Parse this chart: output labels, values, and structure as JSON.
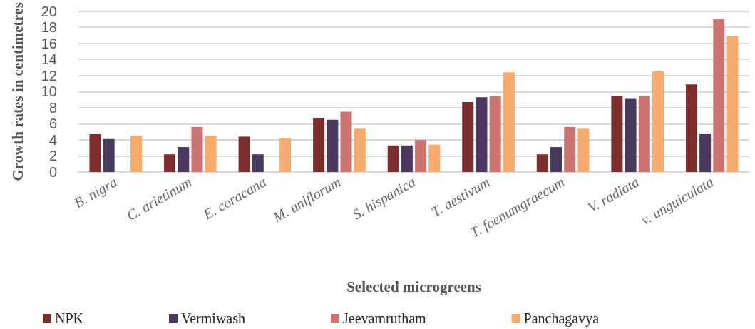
{
  "chart_data": {
    "type": "bar",
    "xlabel": "Selected microgreens",
    "ylabel": "Growth rates in centimetres",
    "categories": [
      "B. nigra",
      "C. arietinum",
      "E. coracana",
      "M. uniflorum",
      "S. hispanica",
      "T. aestivum",
      "T. foenumgraecum",
      "V. radiata",
      "v. unguiculata"
    ],
    "series": [
      {
        "name": "NPK",
        "color": "#7b2c2c",
        "values": [
          4.7,
          2.2,
          4.4,
          6.7,
          3.3,
          8.7,
          2.2,
          9.5,
          10.9
        ]
      },
      {
        "name": "Vermiwash",
        "color": "#4b385e",
        "values": [
          4.1,
          3.1,
          2.2,
          6.5,
          3.3,
          9.3,
          3.1,
          9.1,
          4.7
        ]
      },
      {
        "name": "Jeevamrutham",
        "color": "#cc7470",
        "values": [
          null,
          5.6,
          null,
          7.5,
          4.0,
          9.4,
          5.6,
          9.4,
          19.0
        ]
      },
      {
        "name": "Panchagavya",
        "color": "#f7ab6c",
        "values": [
          4.5,
          4.5,
          4.2,
          5.4,
          3.4,
          12.4,
          5.4,
          12.5,
          16.9
        ]
      }
    ],
    "ylim": [
      0,
      20
    ],
    "yticks": [
      0,
      2,
      4,
      6,
      8,
      10,
      12,
      14,
      16,
      18,
      20
    ],
    "grid": "y",
    "legend": "bottom left"
  }
}
